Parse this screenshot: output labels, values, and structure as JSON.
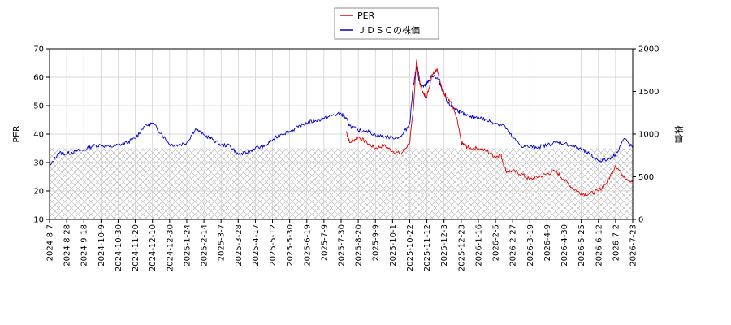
{
  "chart_data": {
    "type": "line",
    "title": "",
    "legend": {
      "position": "top-center",
      "entries": [
        "PER",
        "ＪＤＳＣの株価"
      ]
    },
    "grid": true,
    "hatched_band": {
      "axis": "left",
      "from": 10,
      "to": 35
    },
    "y_left": {
      "label": "PER",
      "lim": [
        10,
        70
      ],
      "ticks": [
        10,
        20,
        30,
        40,
        50,
        60,
        70
      ]
    },
    "y_right": {
      "label": "株価",
      "lim": [
        0,
        2000
      ],
      "ticks": [
        0,
        500,
        1000,
        1500,
        2000
      ]
    },
    "x_ticks": [
      "2024-8-7",
      "2024-8-28",
      "2024-9-18",
      "2024-10-9",
      "2024-10-30",
      "2024-11-20",
      "2024-12-10",
      "2024-12-30",
      "2025-1-24",
      "2025-2-14",
      "2025-3-7",
      "2025-3-28",
      "2025-4-17",
      "2025-5-12",
      "2025-5-30",
      "2025-6-19",
      "2025-7-9",
      "2025-7-30",
      "2025-8-20",
      "2025-9-9",
      "2025-10-1",
      "2025-10-22",
      "2025-11-12",
      "2025-12-3",
      "2025-12-23",
      "2026-1-16",
      "2026-2-5",
      "2026-2-27",
      "2026-3-19",
      "2026-4-9",
      "2026-4-30",
      "2026-5-25",
      "2026-6-12",
      "2026-7-2",
      "2026-7-23"
    ],
    "series": [
      {
        "name": "PER",
        "axis": "left",
        "color": "#dd0000",
        "x_index": [
          17.3,
          17.5,
          18.0,
          18.5,
          19.0,
          19.5,
          20.0,
          20.5,
          21.0,
          21.2,
          21.4,
          21.6,
          21.8,
          22.0,
          22.3,
          22.6,
          22.9,
          23.2,
          23.5,
          23.8,
          24.0,
          24.2,
          24.5,
          25.0,
          25.5,
          26.0,
          26.3,
          26.6,
          27.0,
          27.5,
          28.0,
          28.5,
          29.0,
          29.5,
          30.0,
          30.5,
          31.0,
          31.5,
          32.0,
          32.5,
          33.0,
          33.5,
          34.0
        ],
        "values": [
          41,
          37,
          39,
          37,
          35,
          36,
          34,
          33,
          37,
          48,
          66,
          58,
          54,
          53,
          61,
          63,
          55,
          53,
          50,
          44,
          37,
          36,
          35,
          35,
          34,
          32,
          33,
          27,
          27,
          26,
          24,
          25,
          26,
          27,
          24,
          21,
          19,
          19,
          20,
          23,
          29,
          25,
          23
        ]
      },
      {
        "name": "ＪＤＳＣの株価",
        "axis": "right",
        "color": "#0000cc",
        "x_index": [
          0.0,
          0.5,
          1.0,
          1.5,
          2.0,
          2.5,
          3.0,
          3.5,
          4.0,
          4.5,
          5.0,
          5.5,
          6.0,
          6.5,
          7.0,
          7.5,
          8.0,
          8.5,
          9.0,
          9.5,
          10.0,
          10.5,
          11.0,
          11.5,
          12.0,
          12.5,
          13.0,
          13.5,
          14.0,
          14.5,
          15.0,
          15.5,
          16.0,
          16.5,
          17.0,
          17.3,
          17.5,
          18.0,
          18.5,
          19.0,
          19.5,
          20.0,
          20.5,
          21.0,
          21.2,
          21.4,
          21.6,
          21.8,
          22.0,
          22.3,
          22.6,
          22.9,
          23.2,
          23.5,
          23.8,
          24.0,
          24.5,
          25.0,
          25.5,
          26.0,
          26.5,
          27.0,
          27.5,
          28.0,
          28.5,
          29.0,
          29.5,
          30.0,
          30.5,
          31.0,
          31.5,
          32.0,
          32.5,
          33.0,
          33.5,
          34.0
        ],
        "values": [
          610,
          780,
          770,
          800,
          810,
          860,
          870,
          850,
          870,
          900,
          950,
          1090,
          1130,
          1010,
          880,
          870,
          900,
          1060,
          990,
          940,
          870,
          870,
          760,
          780,
          840,
          850,
          930,
          1000,
          1030,
          1080,
          1130,
          1160,
          1180,
          1220,
          1240,
          1180,
          1100,
          1040,
          1040,
          990,
          970,
          960,
          970,
          1120,
          1560,
          1790,
          1580,
          1550,
          1600,
          1680,
          1660,
          1520,
          1360,
          1320,
          1280,
          1250,
          1200,
          1200,
          1160,
          1130,
          1100,
          960,
          860,
          850,
          850,
          870,
          900,
          890,
          860,
          820,
          760,
          690,
          700,
          760,
          950,
          840
        ]
      }
    ]
  }
}
